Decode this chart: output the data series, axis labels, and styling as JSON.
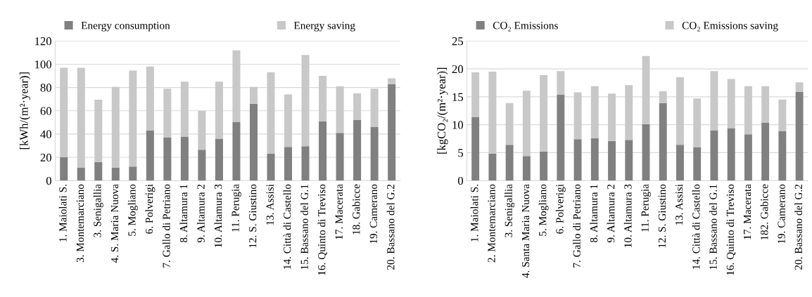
{
  "chart_data": [
    {
      "type": "bar",
      "stacked": true,
      "ylabel": "[kWh/(m²·year)]",
      "ylim": [
        0,
        120
      ],
      "yticks": [
        0,
        20,
        40,
        60,
        80,
        100,
        120
      ],
      "grid": "y",
      "legend": "top",
      "categories": [
        "1. Maiolati S.",
        "3. Montemarciano",
        "3. Senigallia",
        "4. S. Maria Nuova",
        "5. Mogliano",
        "6. Polverigi",
        "7. Gallo di Petriano",
        "8. Altamura 1",
        "9. Altamura 2",
        "10. Altamura 3",
        "11. Perugia",
        "12. S. Giustino",
        "13. Assisi",
        "14. Città di Castello",
        "15. Bassano del G.1",
        "16. Quinto di Treviso",
        "17. Macerata",
        "18. Gabicce",
        "19. Camerano",
        "20. Bassano del G.2"
      ],
      "series": [
        {
          "name": "Energy consumption",
          "color": "#808080",
          "values": [
            20,
            11,
            16,
            11,
            12,
            43,
            37,
            37.5,
            26.5,
            36,
            50.5,
            66,
            23,
            29,
            29.5,
            51,
            41,
            52,
            46,
            83
          ]
        },
        {
          "name": "Energy saving",
          "color": "#c8c8c8",
          "values": [
            77,
            86,
            53.5,
            69.5,
            82.5,
            55,
            42,
            47.5,
            33.5,
            49,
            61.5,
            14.5,
            70,
            45,
            78.5,
            39,
            40,
            23,
            33,
            5
          ]
        }
      ]
    },
    {
      "type": "bar",
      "stacked": true,
      "ylabel": "[kgCO₂/(m²·year)]",
      "ylim": [
        0,
        25
      ],
      "yticks": [
        0,
        5,
        10,
        15,
        20,
        25
      ],
      "grid": "y",
      "legend": "top",
      "categories": [
        "1. Maiolati S.",
        "2. Montemarciano",
        "3. Senigallia",
        "4. Santa Maria Nuova",
        "5. Mogliano",
        "6. Polverigi",
        "7. Gallo di Petriano",
        "8. Altamura 1",
        "9. Altamura 2",
        "10. Altamura 3",
        "11. Perugia",
        "12. S. Giustino",
        "13. Assisi",
        "14. Città di Castello",
        "15. Bassano del G.1",
        "16. Quinto di Treviso",
        "17. Macerata",
        "182. Gabicce",
        "19. Camerano",
        "20. Bassano del G.2"
      ],
      "series": [
        {
          "name": "CO₂ Emissions",
          "color": "#808080",
          "values": [
            11.4,
            4.8,
            6.4,
            4.4,
            5.2,
            15.4,
            7.4,
            7.6,
            7.1,
            7.3,
            10.1,
            13.9,
            6.4,
            6.0,
            9.0,
            9.4,
            8.3,
            10.4,
            8.9,
            15.9
          ]
        },
        {
          "name": "CO₂ Emissions saving",
          "color": "#c8c8c8",
          "values": [
            8.0,
            14.7,
            7.5,
            11.7,
            13.7,
            4.2,
            8.4,
            9.3,
            8.5,
            9.8,
            12.2,
            2.1,
            12.1,
            8.7,
            10.6,
            8.8,
            8.6,
            6.5,
            5.6,
            1.7
          ]
        }
      ]
    }
  ]
}
